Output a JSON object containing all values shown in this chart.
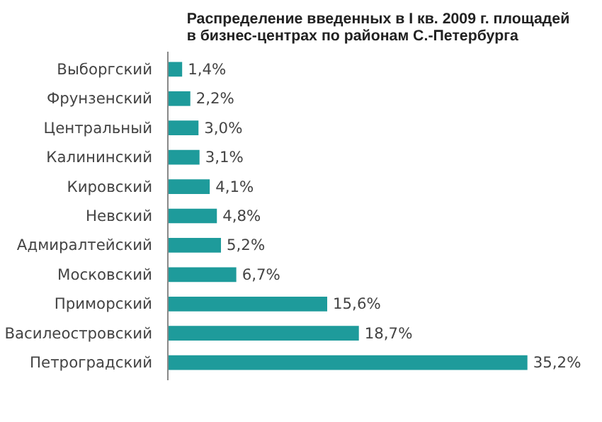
{
  "chart_data": {
    "type": "bar",
    "orientation": "horizontal",
    "title": "Распределение введенных в I кв. 2009 г. площадей в бизнес-центрах по районам С.-Петербурга",
    "categories": [
      "Выборгский",
      "Фрунзенский",
      "Центральный",
      "Калининский",
      "Кировский",
      "Невский",
      "Адмиралтейский",
      "Московский",
      "Приморский",
      "Василеостровский",
      "Петроградский"
    ],
    "values": [
      1.4,
      2.2,
      3.0,
      3.1,
      4.1,
      4.8,
      5.2,
      6.7,
      15.6,
      18.7,
      35.2
    ],
    "value_labels": [
      "1,4%",
      "2,2%",
      "3,0%",
      "3,1%",
      "4,1%",
      "4,8%",
      "5,2%",
      "6,7%",
      "15,6%",
      "18,7%",
      "35,2%"
    ],
    "color": "#1e9b9b",
    "grid": false
  }
}
